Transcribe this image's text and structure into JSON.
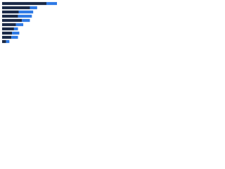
{
  "chart_data": {
    "type": "stacked-bar-horizontal",
    "categories": [
      null,
      null,
      null,
      null,
      null,
      null,
      null,
      null,
      null,
      null
    ],
    "series": [
      {
        "color": "#1b2a47",
        "values": [
          67,
          42,
          25,
          24,
          30,
          21,
          18,
          15,
          14,
          6
        ]
      },
      {
        "color": "#2f7ae5",
        "values": [
          16,
          11,
          22,
          21,
          12,
          11,
          6,
          11,
          10,
          5
        ]
      }
    ],
    "xlim": [
      0,
      100
    ]
  }
}
